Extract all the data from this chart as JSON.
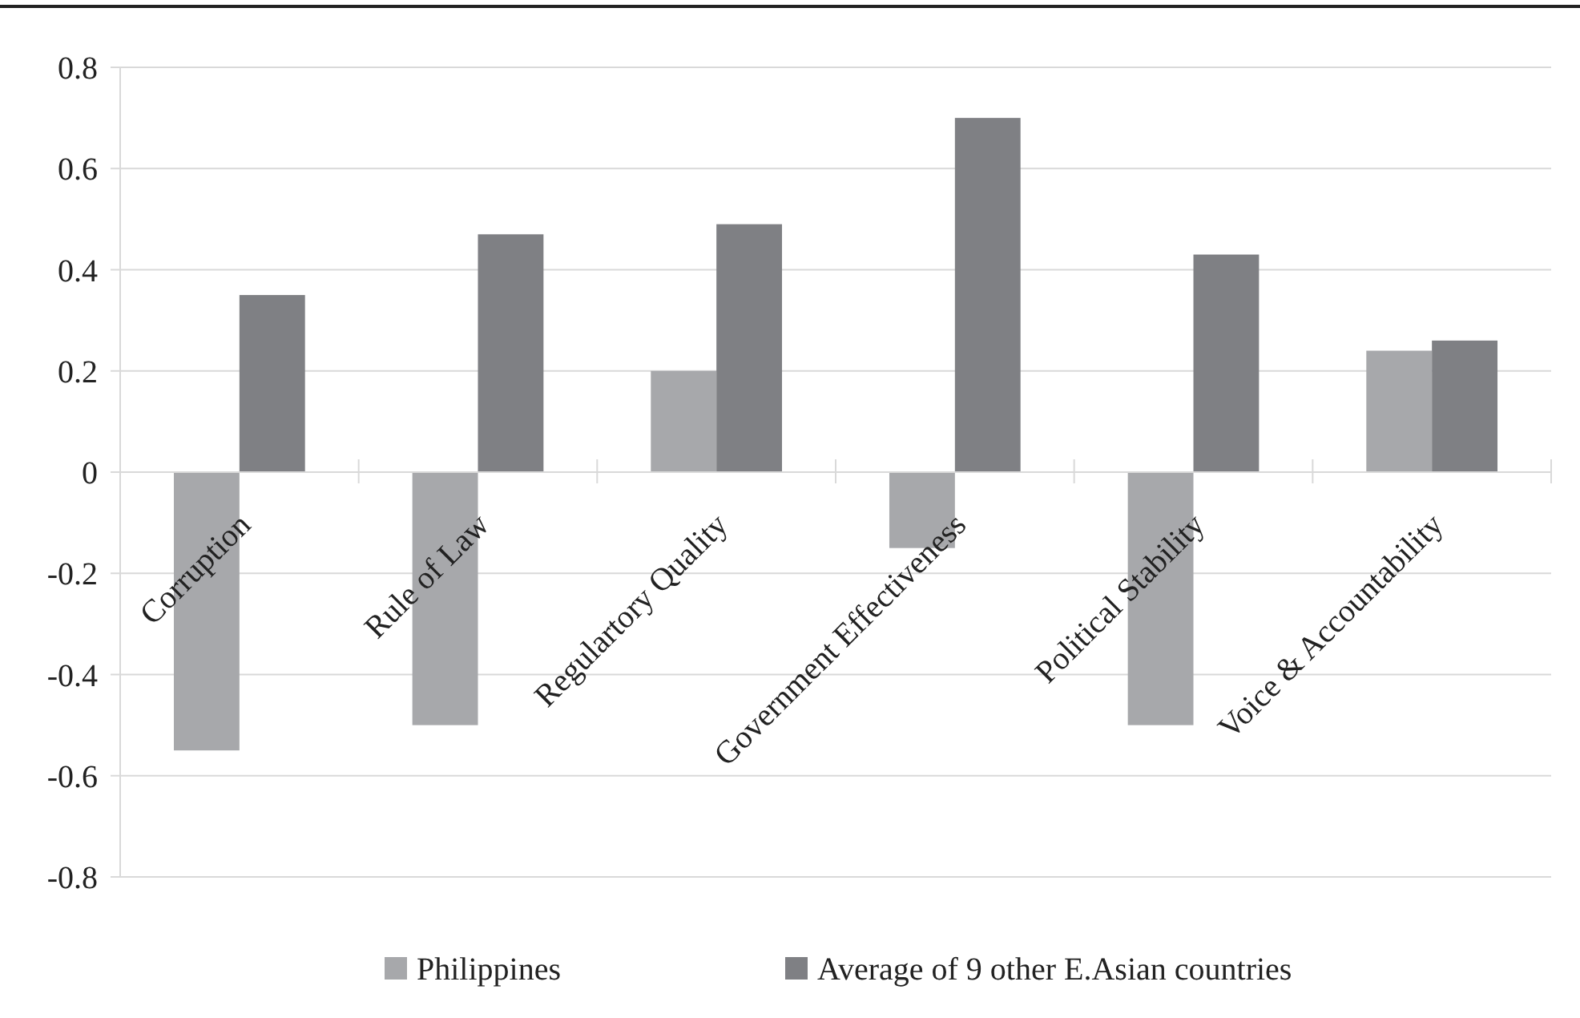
{
  "chart_data": {
    "type": "bar",
    "categories": [
      "Corruption",
      "Rule of Law",
      "Regulartory Quality",
      "Government Effectiveness",
      "Political Stability",
      "Voice & Accountability"
    ],
    "series": [
      {
        "name": "Philippines",
        "color": "#a7a8ab",
        "values": [
          -0.55,
          -0.5,
          0.2,
          -0.15,
          -0.5,
          0.24
        ]
      },
      {
        "name": "Average of 9 other E.Asian countries",
        "color": "#7f8084",
        "values": [
          0.35,
          0.47,
          0.49,
          0.7,
          0.43,
          0.26
        ]
      }
    ],
    "ylim": [
      -0.8,
      0.8
    ],
    "yticks": [
      -0.8,
      -0.6,
      -0.4,
      -0.2,
      0,
      0.2,
      0.4,
      0.6,
      0.8
    ],
    "grid": "y",
    "legend": "bottom"
  }
}
